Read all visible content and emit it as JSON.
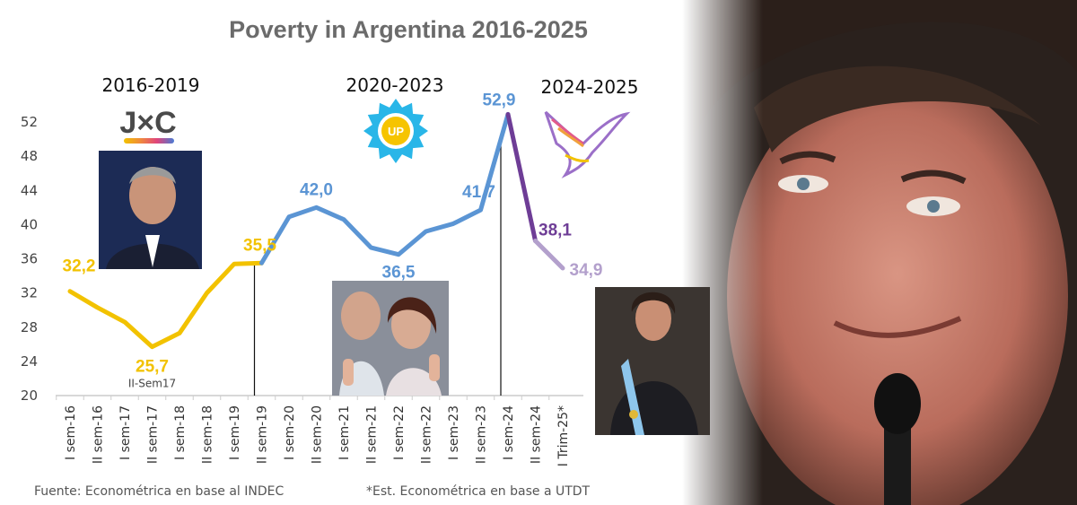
{
  "title": "Poverty in Argentina 2016-2025",
  "source_left": "Fuente: Econométrica en base al INDEC",
  "source_right": "*Est. Econométrica en base a UTDT",
  "periods": [
    {
      "label": "2016-2019",
      "logo": "J×C"
    },
    {
      "label": "2020-2023",
      "logo": "UP"
    },
    {
      "label": "2024-2025",
      "logo": ""
    }
  ],
  "colors": {
    "jxc": "#f2c200",
    "up": "#5b95d4",
    "lla_dark": "#6e3d96",
    "lla_light": "#b3a0cc",
    "axis": "#cccccc"
  },
  "chart_data": {
    "type": "line",
    "title": "Poverty in Argentina 2016-2025",
    "xlabel": "",
    "ylabel": "",
    "ylim": [
      20,
      52
    ],
    "yticks": [
      20,
      24,
      28,
      32,
      36,
      40,
      44,
      48,
      52
    ],
    "categories": [
      "I sem-16",
      "II sem-16",
      "I sem-17",
      "II sem-17",
      "I sem-18",
      "II sem-18",
      "I sem-19",
      "II sem-19",
      "I sem-20",
      "II sem-20",
      "I sem-21",
      "II sem-21",
      "I sem-22",
      "II sem-22",
      "I sem-23",
      "II sem-23",
      "I sem-24",
      "II sem-24",
      "I Trim-25*"
    ],
    "values": [
      32.2,
      30.3,
      28.6,
      25.7,
      27.3,
      32.0,
      35.4,
      35.5,
      40.9,
      42.0,
      40.6,
      37.3,
      36.5,
      39.2,
      40.1,
      41.7,
      52.9,
      38.1,
      34.9
    ],
    "segments": [
      {
        "name": "",
        "from": 0,
        "to": 7,
        "color": "#f2c200"
      },
      {
        "name": "",
        "from": 7,
        "to": 16,
        "color": "#5b95d4"
      },
      {
        "name": "",
        "from": 16,
        "to": 17,
        "color": "#6e3d96"
      },
      {
        "name": "",
        "from": 17,
        "to": 18,
        "color": "#b3a0cc"
      }
    ],
    "data_labels": [
      {
        "index": 0,
        "text": "32,2",
        "color": "#f2c200"
      },
      {
        "index": 3,
        "text": "25,7",
        "color": "#f2c200"
      },
      {
        "index": 7,
        "text": "35,5",
        "color": "#f2c200"
      },
      {
        "index": 9,
        "text": "42,0",
        "color": "#5b95d4"
      },
      {
        "index": 12,
        "text": "36,5",
        "color": "#5b95d4"
      },
      {
        "index": 15,
        "text": "41,7",
        "color": "#5b95d4"
      },
      {
        "index": 16,
        "text": "52,9",
        "color": "#5b95d4"
      },
      {
        "index": 17,
        "text": "38,1",
        "color": "#6e3d96"
      },
      {
        "index": 18,
        "text": "34,9",
        "color": "#b3a0cc"
      }
    ],
    "annotation": {
      "index": 3,
      "text": "II-Sem17"
    },
    "dividers_after_index": [
      7,
      16
    ]
  }
}
